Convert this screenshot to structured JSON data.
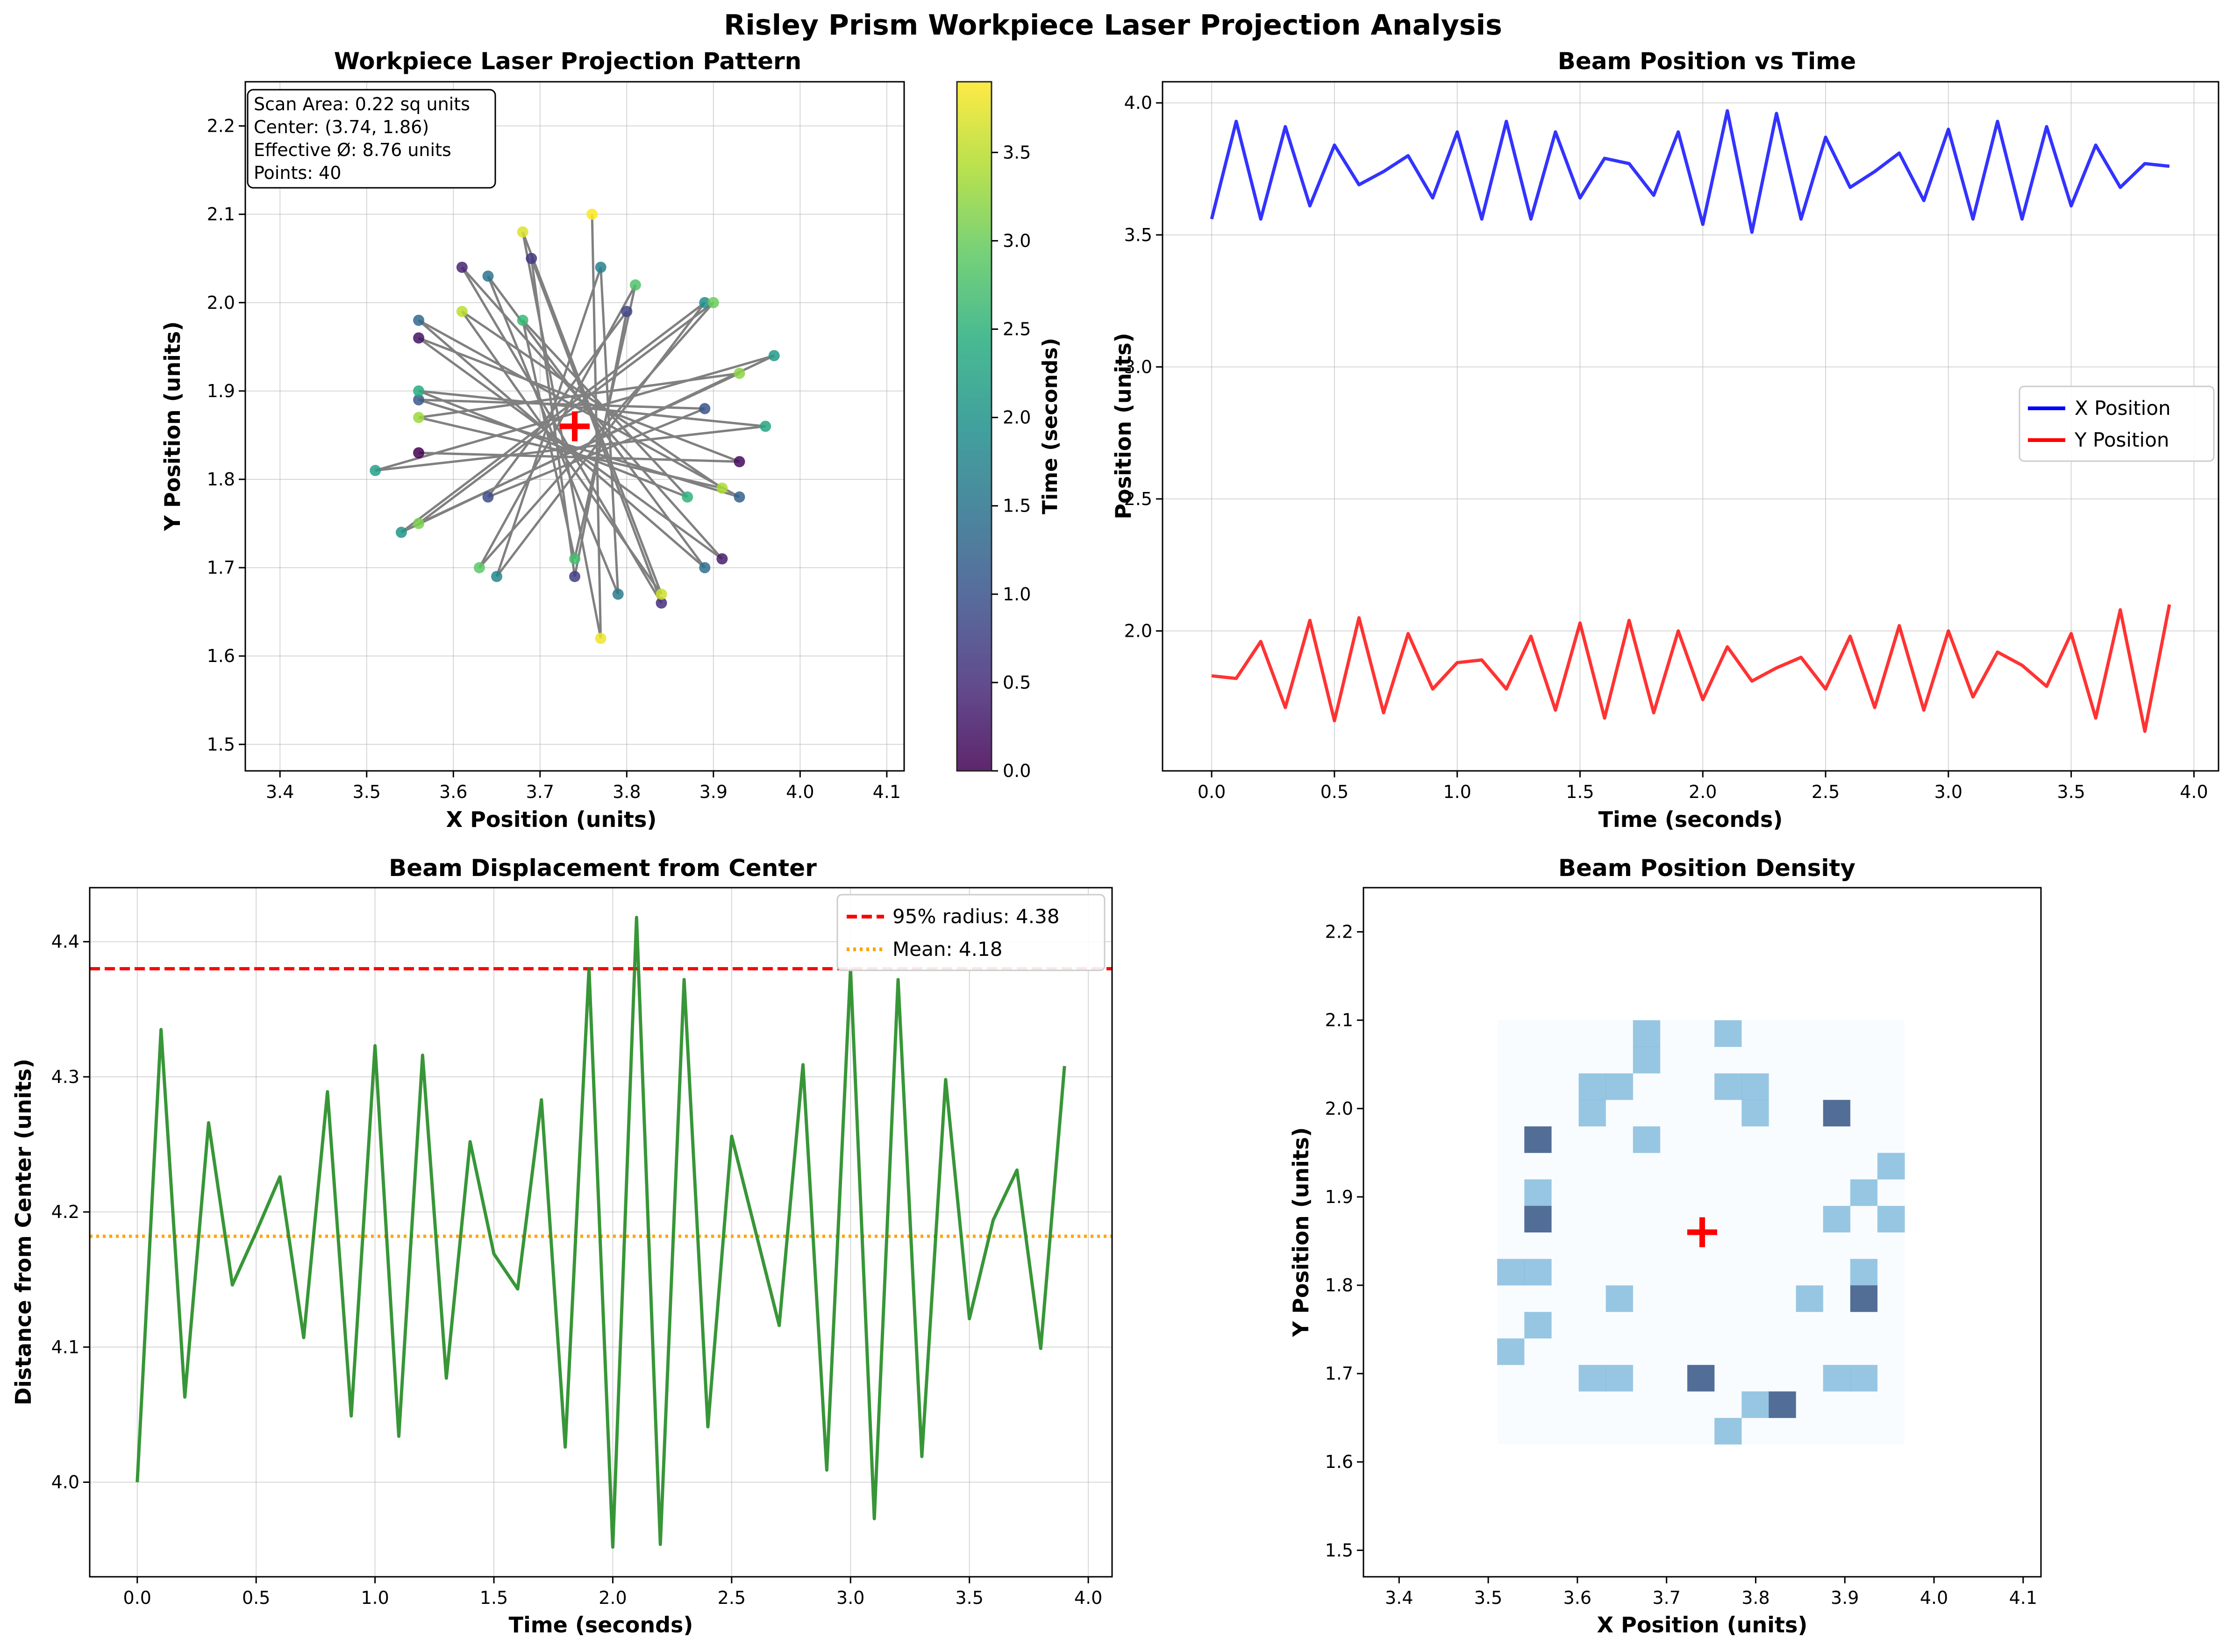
{
  "figure": {
    "suptitle": "Risley Prism Workpiece Laser Projection Analysis"
  },
  "colors": {
    "pattern_line": "#808080",
    "center_marker": "#ff0000",
    "x_series": "#0000ff",
    "y_series": "#ff0000",
    "displacement": "#228b22",
    "radius95": "#ff0000",
    "mean_line": "#ffa500",
    "grid": "#b0b0b0"
  },
  "chart_data": [
    {
      "id": "pattern",
      "type": "scatter",
      "title": "Workpiece Laser Projection Pattern",
      "xlabel": "X Position (units)",
      "ylabel": "Y Position (units)",
      "xlim": [
        3.36,
        4.12
      ],
      "ylim": [
        1.47,
        2.25
      ],
      "xticks": [
        "3.4",
        "3.5",
        "3.6",
        "3.7",
        "3.8",
        "3.9",
        "4.0",
        "4.1"
      ],
      "yticks": [
        "1.5",
        "1.6",
        "1.7",
        "1.8",
        "1.9",
        "2.0",
        "2.1",
        "2.2"
      ],
      "grid": true,
      "colormap": "viridis",
      "colorbar": {
        "label": "Time (seconds)",
        "range": [
          0,
          3.9
        ],
        "ticks": [
          "0.0",
          "0.5",
          "1.0",
          "1.5",
          "2.0",
          "2.5",
          "3.0",
          "3.5"
        ]
      },
      "center": [
        3.74,
        1.86
      ],
      "info_box": [
        "Scan Area: 0.22 sq units",
        "Center: (3.74, 1.86)",
        "Effective Ø: 8.76 units",
        "Points: 40"
      ]
    },
    {
      "id": "position_time",
      "type": "line",
      "title": "Beam Position vs Time",
      "xlabel": "Time (seconds)",
      "ylabel": "Position (units)",
      "xlim": [
        -0.2,
        4.1
      ],
      "ylim": [
        1.47,
        4.08
      ],
      "xticks": [
        "0.0",
        "0.5",
        "1.0",
        "1.5",
        "2.0",
        "2.5",
        "3.0",
        "3.5",
        "4.0"
      ],
      "yticks": [
        "2.0",
        "2.5",
        "3.0",
        "3.5",
        "4.0"
      ],
      "grid": true,
      "legend": "center-right",
      "t": [
        0.0,
        0.1,
        0.2,
        0.3,
        0.4,
        0.5,
        0.6,
        0.7,
        0.8,
        0.9,
        1.0,
        1.1,
        1.2,
        1.3,
        1.4,
        1.5,
        1.6,
        1.7,
        1.8,
        1.9,
        2.0,
        2.1,
        2.2,
        2.3,
        2.4,
        2.5,
        2.6,
        2.7,
        2.8,
        2.9,
        3.0,
        3.1,
        3.2,
        3.3,
        3.4,
        3.5,
        3.6,
        3.7,
        3.8,
        3.9
      ],
      "series": [
        {
          "name": "X Position",
          "values": [
            3.56,
            3.93,
            3.56,
            3.91,
            3.61,
            3.84,
            3.69,
            3.74,
            3.8,
            3.64,
            3.89,
            3.56,
            3.93,
            3.56,
            3.89,
            3.64,
            3.79,
            3.77,
            3.65,
            3.89,
            3.54,
            3.97,
            3.51,
            3.96,
            3.56,
            3.87,
            3.68,
            3.74,
            3.81,
            3.63,
            3.9,
            3.56,
            3.93,
            3.56,
            3.91,
            3.61,
            3.84,
            3.68,
            3.77,
            3.76
          ]
        },
        {
          "name": "Y Position",
          "values": [
            1.83,
            1.82,
            1.96,
            1.71,
            2.04,
            1.66,
            2.05,
            1.69,
            1.99,
            1.78,
            1.88,
            1.89,
            1.78,
            1.98,
            1.7,
            2.03,
            1.67,
            2.04,
            1.69,
            2.0,
            1.74,
            1.94,
            1.81,
            1.86,
            1.9,
            1.78,
            1.98,
            1.71,
            2.02,
            1.7,
            2.0,
            1.75,
            1.92,
            1.87,
            1.79,
            1.99,
            1.67,
            2.08,
            1.62,
            2.1
          ]
        }
      ]
    },
    {
      "id": "displacement",
      "type": "line",
      "title": "Beam Displacement from Center",
      "xlabel": "Time (seconds)",
      "ylabel": "Distance from Center (units)",
      "xlim": [
        -0.2,
        4.1
      ],
      "ylim": [
        3.93,
        4.44
      ],
      "xticks": [
        "0.0",
        "0.5",
        "1.0",
        "1.5",
        "2.0",
        "2.5",
        "3.0",
        "3.5",
        "4.0"
      ],
      "yticks": [
        "4.0",
        "4.1",
        "4.2",
        "4.3",
        "4.4"
      ],
      "grid": true,
      "legend": "top-right",
      "t": [
        0.0,
        0.1,
        0.2,
        0.3,
        0.4,
        0.5,
        0.6,
        0.7,
        0.8,
        0.9,
        1.0,
        1.1,
        1.2,
        1.3,
        1.4,
        1.5,
        1.6,
        1.7,
        1.8,
        1.9,
        2.0,
        2.1,
        2.2,
        2.3,
        2.4,
        2.5,
        2.6,
        2.7,
        2.8,
        2.9,
        3.0,
        3.1,
        3.2,
        3.3,
        3.4,
        3.5,
        3.6,
        3.7,
        3.8,
        3.9
      ],
      "values": [
        4.0,
        4.335,
        4.063,
        4.266,
        4.146,
        4.185,
        4.226,
        4.107,
        4.289,
        4.049,
        4.323,
        4.034,
        4.316,
        4.077,
        4.252,
        4.169,
        4.143,
        4.283,
        4.026,
        4.38,
        3.952,
        4.418,
        3.954,
        4.372,
        4.041,
        4.256,
        4.186,
        4.116,
        4.309,
        4.009,
        4.38,
        3.973,
        4.372,
        4.019,
        4.298,
        4.121,
        4.194,
        4.231,
        4.099,
        4.308
      ],
      "reference_lines": [
        {
          "name": "95% radius: 4.38",
          "value": 4.38,
          "style": "dashed"
        },
        {
          "name": "Mean: 4.18",
          "value": 4.182,
          "style": "dotted"
        }
      ]
    },
    {
      "id": "density",
      "type": "heatmap",
      "title": "Beam Position Density",
      "xlabel": "X Position (units)",
      "ylabel": "Y Position (units)",
      "xlim": [
        3.36,
        4.12
      ],
      "ylim": [
        1.47,
        2.25
      ],
      "xticks": [
        "3.4",
        "3.5",
        "3.6",
        "3.7",
        "3.8",
        "3.9",
        "4.0",
        "4.1"
      ],
      "yticks": [
        "1.5",
        "1.6",
        "1.7",
        "1.8",
        "1.9",
        "2.0",
        "2.1",
        "2.2"
      ],
      "colormap": "Blues",
      "bins": {
        "x": [
          3.51,
          3.967,
          15
        ],
        "y": [
          1.62,
          2.1,
          16
        ]
      },
      "center": [
        3.74,
        1.86
      ]
    }
  ]
}
